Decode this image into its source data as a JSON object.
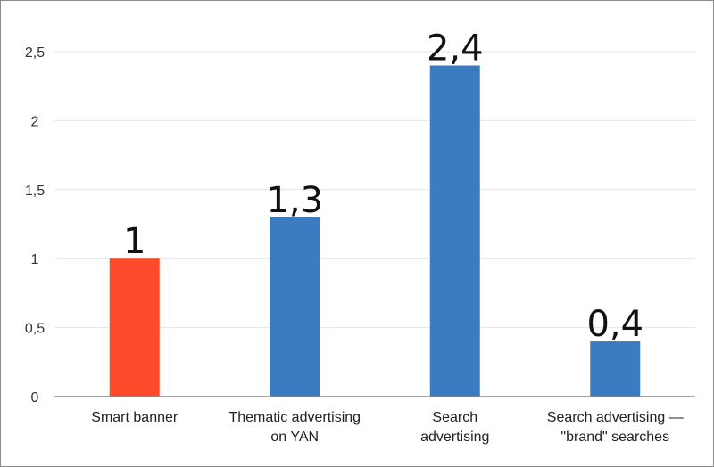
{
  "chart_data": {
    "type": "bar",
    "title": "",
    "xlabel": "",
    "ylabel": "",
    "categories": [
      [
        "Smart banner"
      ],
      [
        "Thematic advertising",
        "on YAN"
      ],
      [
        "Search",
        "advertising"
      ],
      [
        "Search advertising —",
        "\"brand\" searches"
      ]
    ],
    "values": [
      1,
      1.3,
      2.4,
      0.4
    ],
    "data_labels": [
      "1",
      "1,3",
      "2,4",
      "0,4"
    ],
    "bar_colors": [
      "#fe4a2a",
      "#3a7bc2",
      "#3a7bc2",
      "#3a7bc2"
    ],
    "ylim": [
      0,
      2.5
    ],
    "yticks": [
      0,
      0.5,
      1,
      1.5,
      2,
      2.5
    ],
    "ytick_labels": [
      "0",
      "0,5",
      "1",
      "1,5",
      "2",
      "2,5"
    ],
    "grid": true,
    "legend": "none"
  }
}
